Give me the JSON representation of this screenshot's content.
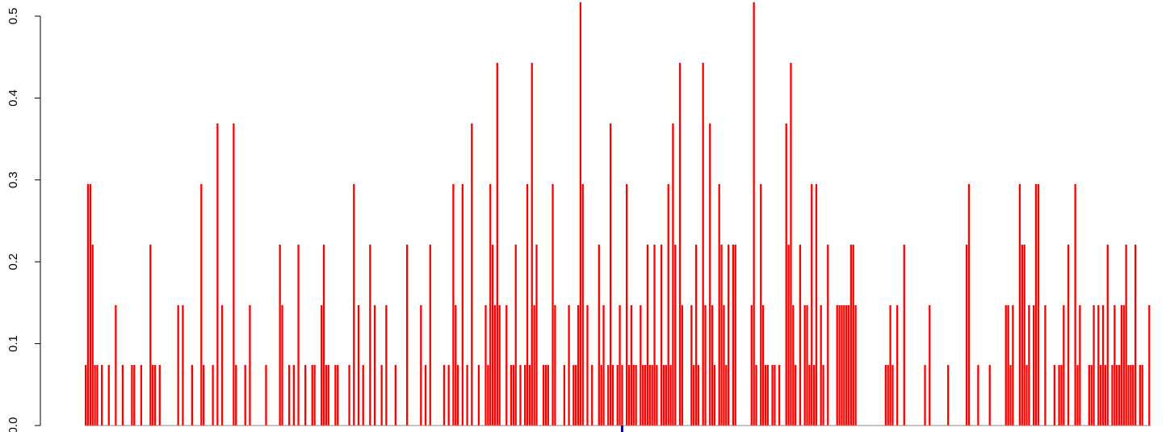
{
  "chart_data": {
    "type": "bar",
    "title": "",
    "xlabel": "",
    "ylabel": "",
    "ylim": [
      0,
      0.52
    ],
    "yticks": [
      "0.0",
      "0.1",
      "0.2",
      "0.3",
      "0.4",
      "0.5"
    ],
    "grid": false,
    "bar_color": "#ff0000",
    "marker_color": "#0000cc",
    "marker_index": 232,
    "values": [
      0.074,
      0.295,
      0.295,
      0.221,
      0.074,
      0.074,
      0,
      0.074,
      0,
      0,
      0.074,
      0,
      0,
      0.147,
      0,
      0,
      0.074,
      0,
      0,
      0,
      0.074,
      0.074,
      0,
      0,
      0.074,
      0,
      0,
      0,
      0.221,
      0.074,
      0.074,
      0,
      0.074,
      0,
      0,
      0,
      0,
      0,
      0,
      0,
      0.147,
      0,
      0.147,
      0,
      0,
      0,
      0.074,
      0,
      0,
      0,
      0.295,
      0.074,
      0,
      0,
      0,
      0.074,
      0,
      0.369,
      0,
      0.147,
      0,
      0,
      0,
      0,
      0.369,
      0.074,
      0,
      0,
      0,
      0.074,
      0,
      0.147,
      0,
      0,
      0,
      0,
      0,
      0,
      0.074,
      0,
      0,
      0,
      0,
      0,
      0.221,
      0.147,
      0,
      0,
      0.074,
      0,
      0.074,
      0,
      0.221,
      0,
      0,
      0.074,
      0,
      0,
      0.074,
      0.074,
      0,
      0,
      0.147,
      0.221,
      0.074,
      0.074,
      0,
      0,
      0.074,
      0.074,
      0,
      0,
      0,
      0,
      0.074,
      0,
      0.295,
      0,
      0.147,
      0,
      0.074,
      0,
      0,
      0.221,
      0,
      0.147,
      0,
      0,
      0.074,
      0,
      0.147,
      0,
      0,
      0,
      0.074,
      0,
      0,
      0,
      0,
      0.221,
      0,
      0,
      0,
      0,
      0,
      0.147,
      0,
      0.074,
      0,
      0.221,
      0,
      0,
      0,
      0,
      0,
      0.074,
      0,
      0.074,
      0,
      0.295,
      0.147,
      0.074,
      0,
      0.295,
      0,
      0.074,
      0,
      0.369,
      0,
      0,
      0.074,
      0,
      0,
      0.147,
      0.074,
      0.295,
      0.221,
      0.147,
      0.443,
      0.147,
      0,
      0,
      0.147,
      0,
      0.074,
      0.074,
      0.221,
      0,
      0.074,
      0,
      0.074,
      0.295,
      0.074,
      0.443,
      0.147,
      0.221,
      0,
      0,
      0.074,
      0.074,
      0.074,
      0,
      0.295,
      0.147,
      0,
      0,
      0,
      0.074,
      0,
      0.147,
      0,
      0.074,
      0.074,
      0.147,
      0.517,
      0.295,
      0,
      0.147,
      0,
      0.074,
      0,
      0,
      0.221,
      0.074,
      0.147,
      0,
      0.074,
      0.369,
      0.074,
      0,
      0.074,
      0.147,
      0.074,
      0,
      0.295,
      0.074,
      0.147,
      0.074,
      0.074,
      0,
      0.147,
      0.074,
      0.074,
      0.221,
      0.074,
      0.074,
      0.221,
      0.074,
      0,
      0.221,
      0.074,
      0.074,
      0.295,
      0.074,
      0.369,
      0.221,
      0,
      0.443,
      0.147,
      0,
      0,
      0,
      0.147,
      0.074,
      0.221,
      0.074,
      0,
      0.443,
      0.147,
      0,
      0.369,
      0.147,
      0.074,
      0,
      0.295,
      0.221,
      0.147,
      0.074,
      0.221,
      0,
      0.221,
      0.221,
      0,
      0,
      0,
      0,
      0,
      0,
      0.147,
      0.517,
      0.074,
      0,
      0.295,
      0.147,
      0.074,
      0.074,
      0,
      0.074,
      0.074,
      0,
      0.074,
      0,
      0,
      0.369,
      0.221,
      0.443,
      0.147,
      0.074,
      0,
      0.221,
      0,
      0.147,
      0.147,
      0.074,
      0.295,
      0.074,
      0.295,
      0,
      0.147,
      0.074,
      0,
      0.221,
      0,
      0,
      0,
      0.147,
      0.147,
      0.147,
      0.147,
      0.147,
      0.147,
      0.221,
      0.221,
      0.147,
      0,
      0,
      0,
      0,
      0,
      0,
      0,
      0,
      0,
      0,
      0,
      0,
      0.074,
      0.074,
      0.147,
      0.074,
      0,
      0.147,
      0,
      0,
      0.221,
      0,
      0,
      0,
      0,
      0,
      0,
      0,
      0,
      0.074,
      0,
      0.147,
      0,
      0,
      0,
      0,
      0,
      0,
      0,
      0.074,
      0,
      0,
      0,
      0,
      0,
      0,
      0,
      0.221,
      0.295,
      0,
      0,
      0,
      0.074,
      0,
      0,
      0,
      0,
      0.074,
      0,
      0,
      0,
      0,
      0,
      0,
      0.147,
      0.147,
      0.074,
      0.147,
      0,
      0,
      0.295,
      0.221,
      0.221,
      0.074,
      0.147,
      0,
      0.147,
      0.295,
      0.295,
      0,
      0,
      0.147,
      0,
      0,
      0,
      0.074,
      0,
      0.074,
      0.074,
      0.147,
      0,
      0.221,
      0,
      0,
      0.295,
      0.074,
      0.147,
      0,
      0,
      0,
      0.074,
      0.074,
      0.147,
      0,
      0.147,
      0.074,
      0.147,
      0.074,
      0.221,
      0,
      0.074,
      0.147,
      0.074,
      0.074,
      0.147,
      0.147,
      0.221,
      0.074,
      0.074,
      0.074,
      0.221,
      0,
      0.074,
      0.074,
      0,
      0,
      0.147
    ]
  }
}
